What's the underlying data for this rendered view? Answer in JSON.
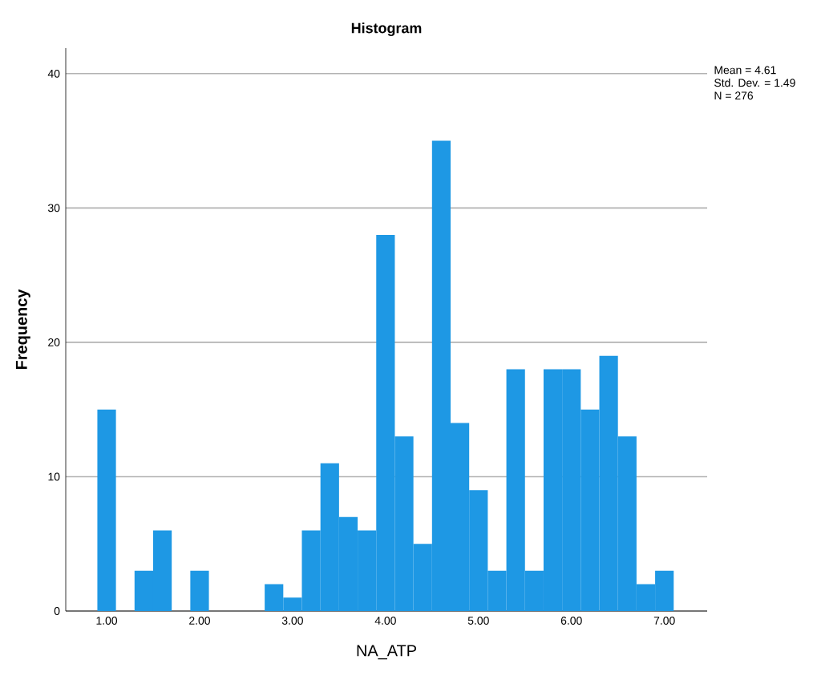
{
  "chart_data": {
    "type": "histogram",
    "title": "Histogram",
    "xlabel": "NA_ATP",
    "ylabel": "Frequency",
    "bins": [
      0.9,
      1.1,
      1.3,
      1.5,
      1.7,
      1.9,
      2.1,
      2.3,
      2.5,
      2.7,
      2.9,
      3.1,
      3.3,
      3.5,
      3.7,
      3.9,
      4.1,
      4.3,
      4.5,
      4.7,
      4.9,
      5.1,
      5.3,
      5.5,
      5.7,
      5.9,
      6.1,
      6.3,
      6.5,
      6.7,
      6.9,
      7.1
    ],
    "values": [
      15,
      0,
      3,
      6,
      0,
      3,
      0,
      0,
      0,
      2,
      1,
      6,
      11,
      7,
      6,
      28,
      13,
      5,
      35,
      14,
      9,
      3,
      18,
      3,
      18,
      18,
      15,
      19,
      13,
      2,
      3
    ],
    "color": "#1e98e4",
    "xlim": [
      0.56,
      7.46
    ],
    "ylim": [
      0,
      41.9
    ],
    "xticks": [
      {
        "value": 1,
        "label": "1.00"
      },
      {
        "value": 2,
        "label": "2.00"
      },
      {
        "value": 3,
        "label": "3.00"
      },
      {
        "value": 4,
        "label": "4.00"
      },
      {
        "value": 5,
        "label": "5.00"
      },
      {
        "value": 6,
        "label": "6.00"
      },
      {
        "value": 7,
        "label": "7.00"
      }
    ],
    "yticks": [
      0,
      10,
      20,
      30,
      40
    ],
    "grid": "y",
    "annotations": [
      "Mean = 4.61",
      "Std. Dev. = 1.49",
      "N = 276"
    ]
  }
}
